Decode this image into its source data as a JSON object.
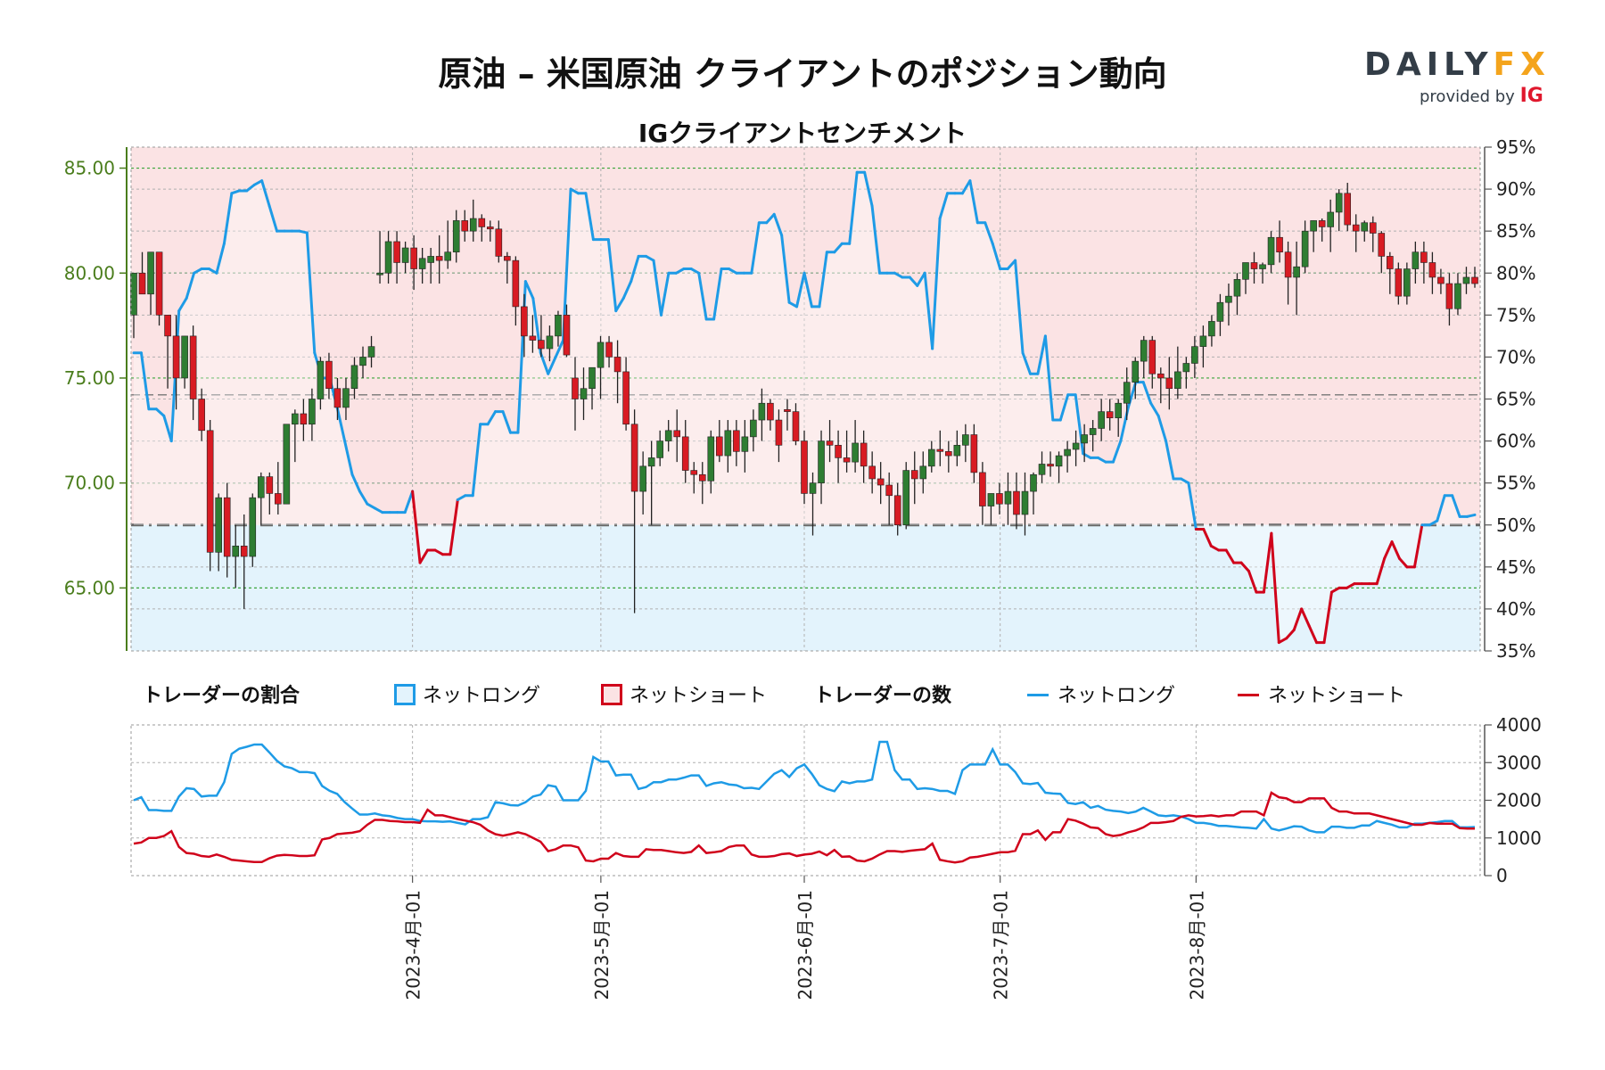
{
  "header": {
    "title": "原油 – 米国原油 クライアントのポジション動向",
    "subtitle": "IGクライアントセンチメント",
    "logo_brand_a": "DAILY",
    "logo_brand_b": "FX",
    "logo_provided": "provided by",
    "logo_ig": "IG"
  },
  "legend": {
    "pct_title": "トレーダーの割合",
    "pct_long": "ネットロング",
    "pct_short": "ネットショート",
    "count_title": "トレーダーの数",
    "count_long": "ネットロング",
    "count_short": "ネットショート"
  },
  "colors": {
    "up": "#2e7d32",
    "down": "#d81b23",
    "long": "#1e9be6",
    "short": "#d0021b",
    "long_fill": "#e3f3fc",
    "short_fill": "#fbe3e4",
    "price_axis": "#4a7d1c"
  },
  "chart_data": {
    "type": "candlestick+line",
    "x_ticks": [
      "2023-4月-01",
      "2023-5月-01",
      "2023-6月-01",
      "2023-7月-01",
      "2023-8月-01"
    ],
    "price_axis": {
      "ticks": [
        "65.00",
        "70.00",
        "75.00",
        "80.00",
        "85.00"
      ],
      "ylim": [
        62.0,
        86.0
      ]
    },
    "sentiment_axis": {
      "ticks": [
        "35%",
        "40%",
        "45%",
        "50%",
        "55%",
        "60%",
        "65%",
        "70%",
        "75%",
        "80%",
        "85%",
        "90%",
        "95%"
      ],
      "ylim": [
        35,
        95
      ]
    },
    "count_axis": {
      "ticks": [
        "0",
        "1000",
        "2000",
        "3000",
        "4000"
      ],
      "ylim": [
        0,
        4000
      ]
    },
    "candles_ohlc": [
      [
        78.0,
        80.0,
        76.9,
        80.0
      ],
      [
        80.0,
        81.0,
        79.0,
        79.0
      ],
      [
        79.0,
        81.0,
        78.0,
        81.0
      ],
      [
        81.0,
        81.0,
        77.5,
        78.0
      ],
      [
        78.0,
        78.0,
        74.5,
        77.0
      ],
      [
        77.0,
        78.0,
        73.5,
        75.0
      ],
      [
        75.0,
        77.0,
        74.5,
        77.0
      ],
      [
        77.0,
        77.5,
        73.0,
        74.0
      ],
      [
        74.0,
        74.5,
        72.0,
        72.5
      ],
      [
        72.5,
        73.0,
        65.8,
        66.7
      ],
      [
        66.7,
        69.5,
        65.8,
        69.3
      ],
      [
        69.3,
        70.0,
        65.5,
        66.5
      ],
      [
        66.5,
        68.0,
        65.0,
        67.0
      ],
      [
        67.0,
        68.5,
        64.0,
        66.5
      ],
      [
        66.5,
        69.5,
        66.0,
        69.3
      ],
      [
        69.3,
        70.5,
        68.0,
        70.3
      ],
      [
        70.3,
        70.5,
        68.5,
        69.5
      ],
      [
        69.5,
        71.0,
        68.5,
        69.0
      ],
      [
        69.0,
        72.0,
        69.0,
        72.8
      ],
      [
        72.8,
        73.5,
        71.0,
        73.3
      ],
      [
        73.3,
        74.0,
        72.0,
        72.8
      ],
      [
        72.8,
        74.5,
        72.0,
        74.0
      ],
      [
        74.0,
        76.0,
        73.5,
        75.8
      ],
      [
        75.8,
        76.2,
        74.0,
        74.5
      ],
      [
        74.5,
        75.0,
        73.0,
        73.6
      ],
      [
        73.6,
        75.0,
        73.0,
        74.5
      ],
      [
        74.5,
        76.0,
        74.0,
        75.6
      ],
      [
        75.6,
        76.5,
        75.0,
        76.0
      ],
      [
        76.0,
        77.0,
        75.5,
        76.5
      ],
      [
        80.0,
        82.0,
        79.5,
        80.0
      ],
      [
        80.0,
        82.0,
        79.5,
        81.5
      ],
      [
        81.5,
        82.0,
        79.5,
        80.5
      ],
      [
        80.5,
        81.5,
        80.0,
        81.2
      ],
      [
        81.2,
        81.8,
        79.2,
        80.2
      ],
      [
        80.2,
        81.2,
        79.5,
        80.7
      ],
      [
        80.5,
        81.2,
        79.5,
        80.8
      ],
      [
        80.8,
        81.8,
        79.5,
        80.6
      ],
      [
        80.6,
        82.5,
        80.2,
        81.0
      ],
      [
        81.0,
        83.0,
        80.5,
        82.5
      ],
      [
        82.5,
        83.0,
        81.5,
        82.0
      ],
      [
        82.0,
        83.5,
        81.5,
        82.6
      ],
      [
        82.6,
        82.8,
        81.5,
        82.2
      ],
      [
        82.2,
        82.5,
        81.5,
        82.1
      ],
      [
        82.1,
        82.5,
        80.5,
        80.8
      ],
      [
        80.8,
        81.0,
        79.5,
        80.6
      ],
      [
        80.6,
        80.8,
        77.5,
        78.4
      ],
      [
        78.4,
        79.0,
        76.0,
        77.0
      ],
      [
        77.0,
        78.0,
        76.2,
        76.8
      ],
      [
        76.8,
        78.0,
        76.0,
        76.4
      ],
      [
        76.4,
        77.5,
        75.8,
        77.0
      ],
      [
        77.0,
        78.2,
        76.5,
        78.0
      ],
      [
        78.0,
        78.5,
        76.0,
        76.1
      ],
      [
        75.0,
        76.0,
        72.5,
        74.0
      ],
      [
        74.0,
        75.5,
        73.0,
        74.5
      ],
      [
        74.5,
        75.5,
        73.5,
        75.5
      ],
      [
        75.5,
        77.0,
        74.0,
        76.7
      ],
      [
        76.7,
        77.0,
        75.5,
        76.0
      ],
      [
        76.0,
        76.8,
        73.8,
        75.3
      ],
      [
        75.3,
        76.0,
        72.5,
        72.8
      ],
      [
        72.8,
        73.5,
        63.8,
        69.6
      ],
      [
        69.6,
        71.5,
        68.5,
        70.8
      ],
      [
        70.8,
        72.0,
        68.0,
        71.2
      ],
      [
        71.2,
        72.5,
        70.8,
        72.0
      ],
      [
        72.0,
        73.0,
        71.5,
        72.5
      ],
      [
        72.5,
        73.5,
        71.0,
        72.2
      ],
      [
        72.2,
        73.0,
        70.0,
        70.6
      ],
      [
        70.6,
        71.0,
        69.5,
        70.4
      ],
      [
        70.4,
        71.0,
        69.0,
        70.1
      ],
      [
        70.1,
        72.5,
        69.5,
        72.2
      ],
      [
        72.2,
        73.0,
        71.0,
        71.3
      ],
      [
        71.3,
        73.0,
        70.5,
        72.5
      ],
      [
        72.5,
        73.0,
        70.8,
        71.5
      ],
      [
        71.5,
        73.0,
        70.5,
        72.2
      ],
      [
        72.2,
        73.5,
        71.5,
        73.0
      ],
      [
        73.0,
        74.5,
        72.0,
        73.8
      ],
      [
        73.8,
        74.0,
        72.5,
        73.0
      ],
      [
        73.0,
        73.5,
        71.0,
        71.8
      ],
      [
        73.5,
        74.0,
        72.5,
        73.4
      ],
      [
        73.4,
        73.8,
        71.8,
        72.0
      ],
      [
        72.0,
        72.5,
        69.0,
        69.5
      ],
      [
        69.5,
        70.5,
        67.5,
        70.0
      ],
      [
        70.0,
        72.5,
        69.0,
        72.0
      ],
      [
        72.0,
        73.0,
        71.0,
        71.8
      ],
      [
        71.8,
        72.5,
        70.0,
        71.2
      ],
      [
        71.2,
        72.5,
        70.5,
        71.0
      ],
      [
        71.0,
        73.0,
        70.5,
        71.9
      ],
      [
        71.9,
        72.5,
        70.0,
        70.8
      ],
      [
        70.8,
        71.5,
        69.5,
        70.2
      ],
      [
        70.2,
        71.0,
        69.0,
        69.9
      ],
      [
        69.9,
        70.5,
        68.0,
        69.4
      ],
      [
        69.4,
        70.0,
        67.5,
        68.0
      ],
      [
        68.0,
        71.0,
        67.8,
        70.6
      ],
      [
        70.6,
        71.5,
        69.0,
        70.2
      ],
      [
        70.2,
        71.5,
        69.5,
        70.8
      ],
      [
        70.8,
        72.0,
        70.5,
        71.6
      ],
      [
        71.6,
        72.5,
        70.8,
        71.5
      ],
      [
        71.5,
        72.0,
        70.5,
        71.3
      ],
      [
        71.3,
        72.5,
        70.8,
        71.8
      ],
      [
        71.8,
        72.8,
        71.0,
        72.3
      ],
      [
        72.3,
        72.8,
        70.0,
        70.5
      ],
      [
        70.5,
        71.0,
        68.0,
        68.9
      ],
      [
        68.9,
        69.5,
        68.0,
        69.5
      ],
      [
        69.5,
        70.0,
        68.5,
        69.0
      ],
      [
        69.0,
        70.5,
        68.0,
        69.6
      ],
      [
        69.6,
        70.5,
        67.8,
        68.5
      ],
      [
        68.5,
        70.5,
        67.5,
        69.6
      ],
      [
        69.6,
        70.5,
        68.5,
        70.4
      ],
      [
        70.4,
        71.5,
        70.0,
        70.9
      ],
      [
        70.9,
        71.5,
        70.3,
        70.8
      ],
      [
        70.8,
        71.5,
        70.0,
        71.3
      ],
      [
        71.3,
        72.0,
        70.5,
        71.6
      ],
      [
        71.6,
        72.5,
        70.8,
        71.9
      ],
      [
        71.9,
        72.8,
        71.0,
        72.3
      ],
      [
        72.3,
        73.0,
        71.5,
        72.6
      ],
      [
        72.6,
        74.0,
        72.0,
        73.4
      ],
      [
        73.4,
        74.0,
        72.5,
        73.1
      ],
      [
        73.1,
        74.0,
        72.2,
        73.8
      ],
      [
        73.8,
        75.5,
        73.0,
        74.8
      ],
      [
        74.8,
        76.0,
        74.0,
        75.8
      ],
      [
        75.8,
        77.0,
        75.0,
        76.8
      ],
      [
        76.8,
        77.0,
        74.5,
        75.2
      ],
      [
        75.2,
        75.5,
        73.8,
        75.0
      ],
      [
        75.0,
        76.0,
        73.5,
        74.5
      ],
      [
        74.5,
        76.5,
        74.0,
        75.3
      ],
      [
        75.3,
        76.0,
        74.5,
        75.7
      ],
      [
        75.7,
        77.0,
        75.0,
        76.5
      ],
      [
        76.5,
        77.5,
        75.5,
        77.0
      ],
      [
        77.0,
        78.0,
        76.5,
        77.7
      ],
      [
        77.7,
        79.0,
        77.0,
        78.6
      ],
      [
        78.6,
        79.5,
        77.5,
        78.9
      ],
      [
        78.9,
        80.0,
        78.0,
        79.7
      ],
      [
        79.7,
        80.5,
        79.0,
        80.5
      ],
      [
        80.5,
        81.0,
        79.5,
        80.2
      ],
      [
        80.2,
        80.5,
        79.5,
        80.4
      ],
      [
        80.4,
        82.0,
        80.0,
        81.7
      ],
      [
        81.7,
        82.5,
        80.5,
        81.0
      ],
      [
        81.0,
        81.5,
        78.5,
        79.8
      ],
      [
        79.8,
        81.5,
        78.0,
        80.3
      ],
      [
        80.3,
        82.5,
        80.0,
        82.0
      ],
      [
        82.0,
        82.5,
        81.0,
        82.5
      ],
      [
        82.5,
        82.6,
        81.5,
        82.2
      ],
      [
        82.2,
        83.5,
        81.0,
        82.9
      ],
      [
        82.9,
        84.0,
        82.0,
        83.8
      ],
      [
        83.8,
        84.3,
        82.0,
        82.3
      ],
      [
        82.3,
        82.8,
        81.0,
        82.0
      ],
      [
        82.0,
        82.5,
        81.5,
        82.4
      ],
      [
        82.4,
        82.7,
        81.0,
        81.9
      ],
      [
        81.9,
        82.0,
        80.0,
        80.8
      ],
      [
        80.8,
        81.0,
        79.0,
        80.2
      ],
      [
        80.2,
        80.5,
        78.5,
        78.9
      ],
      [
        78.9,
        80.5,
        78.5,
        80.2
      ],
      [
        80.2,
        81.5,
        79.5,
        81.0
      ],
      [
        81.0,
        81.5,
        79.5,
        80.5
      ],
      [
        80.5,
        81.0,
        79.0,
        79.8
      ],
      [
        79.8,
        80.2,
        79.0,
        79.5
      ],
      [
        79.5,
        80.0,
        77.5,
        78.3
      ],
      [
        78.3,
        80.0,
        78.0,
        79.5
      ],
      [
        79.5,
        80.3,
        79.0,
        79.8
      ],
      [
        79.8,
        80.3,
        79.3,
        79.5
      ]
    ],
    "sentiment_pct": [
      70.5,
      70.5,
      63.8,
      63.8,
      63.0,
      60.0,
      75.5,
      77.0,
      80.0,
      80.5,
      80.5,
      80.0,
      83.5,
      89.5,
      89.8,
      89.8,
      90.5,
      91.0,
      88.0,
      85.0,
      85.0,
      85.0,
      85.0,
      84.8,
      70.5,
      67.5,
      67.5,
      64.0,
      60.0,
      56.0,
      54.0,
      52.5,
      52.0,
      51.5,
      51.5,
      51.5,
      51.5,
      54.0,
      45.5,
      47.0,
      47.0,
      46.5,
      46.5,
      53.0,
      53.5,
      53.5,
      62.0,
      62.0,
      63.5,
      63.5,
      61.0,
      61.0,
      79.0,
      77.0,
      70.5,
      68.0,
      70.0,
      72.0,
      90.0,
      89.5,
      89.5,
      84.0,
      84.0,
      84.0,
      75.5,
      77.0,
      79.0,
      82.0,
      82.0,
      81.5,
      75.0,
      80.0,
      80.0,
      80.5,
      80.5,
      80.0,
      74.5,
      74.5,
      80.5,
      80.5,
      80.0,
      80.0,
      80.0,
      86.0,
      86.0,
      87.0,
      84.5,
      76.5,
      76.0,
      80.0,
      76.0,
      76.0,
      82.5,
      82.5,
      83.5,
      83.5,
      92.0,
      92.0,
      88.0,
      80.0,
      80.0,
      80.0,
      79.5,
      79.5,
      78.5,
      80.0,
      71.0,
      86.5,
      89.5,
      89.5,
      89.5,
      91.0,
      86.0,
      86.0,
      83.5,
      80.5,
      80.5,
      81.5,
      70.5,
      68.0,
      68.0,
      72.5,
      62.5,
      62.5,
      65.5,
      65.5,
      58.5,
      58.0,
      58.0,
      57.5,
      57.5,
      60.0,
      64.0,
      67.0,
      67.0,
      64.5,
      63.0,
      60.0,
      55.5,
      55.5,
      55.0,
      49.5,
      49.5,
      47.5,
      47.0,
      47.0,
      45.5,
      45.5,
      44.5,
      42.0,
      42.0,
      49.0,
      36.0,
      36.5,
      37.5,
      40.0,
      38.0,
      36.0,
      36.0,
      42.0,
      42.5,
      42.5,
      43.0,
      43.0,
      43.0,
      43.0,
      46.0,
      48.0,
      46.0,
      45.0,
      45.0,
      50.0,
      50.0,
      50.5,
      53.5,
      53.5,
      51.0,
      51.0,
      51.2
    ],
    "count_long": [
      2000,
      2080,
      1740,
      1740,
      1720,
      1720,
      2100,
      2320,
      2300,
      2100,
      2120,
      2120,
      2480,
      3230,
      3370,
      3420,
      3480,
      3480,
      3270,
      3050,
      2900,
      2850,
      2750,
      2750,
      2720,
      2380,
      2250,
      2170,
      1950,
      1780,
      1620,
      1620,
      1650,
      1600,
      1580,
      1530,
      1500,
      1500,
      1450,
      1440,
      1440,
      1430,
      1440,
      1400,
      1360,
      1500,
      1500,
      1550,
      1950,
      1920,
      1870,
      1860,
      1950,
      2100,
      2150,
      2400,
      2360,
      2000,
      2000,
      2000,
      2250,
      3150,
      3030,
      3030,
      2660,
      2680,
      2680,
      2300,
      2350,
      2480,
      2480,
      2550,
      2550,
      2600,
      2660,
      2660,
      2380,
      2450,
      2480,
      2420,
      2400,
      2320,
      2330,
      2300,
      2500,
      2700,
      2800,
      2620,
      2850,
      2950,
      2700,
      2400,
      2300,
      2240,
      2500,
      2450,
      2500,
      2500,
      2550,
      3550,
      3550,
      2800,
      2550,
      2550,
      2300,
      2320,
      2300,
      2250,
      2250,
      2170,
      2800,
      2950,
      2950,
      2950,
      3350,
      2950,
      2950,
      2750,
      2450,
      2430,
      2460,
      2200,
      2180,
      2170,
      1930,
      1900,
      1950,
      1800,
      1850,
      1750,
      1720,
      1700,
      1660,
      1700,
      1800,
      1700,
      1600,
      1580,
      1600,
      1570,
      1500,
      1400,
      1400,
      1370,
      1320,
      1320,
      1300,
      1280,
      1270,
      1250,
      1500,
      1250,
      1200,
      1250,
      1310,
      1300,
      1200,
      1150,
      1150,
      1300,
      1300,
      1270,
      1270,
      1330,
      1330,
      1450,
      1400,
      1350,
      1280,
      1280,
      1380,
      1380,
      1400,
      1420,
      1450,
      1450,
      1280,
      1280,
      1290
    ],
    "count_short": [
      850,
      880,
      1000,
      1000,
      1050,
      1180,
      760,
      600,
      580,
      520,
      500,
      560,
      500,
      420,
      400,
      380,
      360,
      360,
      460,
      530,
      550,
      540,
      520,
      520,
      540,
      960,
      1000,
      1100,
      1120,
      1140,
      1180,
      1350,
      1480,
      1480,
      1450,
      1440,
      1420,
      1420,
      1400,
      1750,
      1600,
      1600,
      1550,
      1500,
      1460,
      1420,
      1350,
      1200,
      1100,
      1060,
      1100,
      1150,
      1100,
      1000,
      900,
      650,
      700,
      800,
      800,
      750,
      400,
      380,
      450,
      450,
      600,
      520,
      500,
      500,
      700,
      680,
      680,
      650,
      620,
      600,
      630,
      800,
      600,
      620,
      650,
      760,
      800,
      800,
      560,
      500,
      500,
      520,
      570,
      590,
      520,
      560,
      580,
      640,
      540,
      680,
      500,
      510,
      400,
      380,
      450,
      560,
      650,
      650,
      630,
      660,
      680,
      700,
      850,
      420,
      380,
      350,
      380,
      480,
      500,
      540,
      580,
      620,
      620,
      660,
      1100,
      1100,
      1200,
      950,
      1150,
      1150,
      1500,
      1460,
      1380,
      1280,
      1260,
      1100,
      1050,
      1080,
      1150,
      1200,
      1280,
      1400,
      1400,
      1420,
      1450,
      1560,
      1600,
      1570,
      1580,
      1600,
      1570,
      1600,
      1600,
      1700,
      1700,
      1700,
      1600,
      2200,
      2080,
      2050,
      1950,
      1950,
      2050,
      2050,
      2050,
      1800,
      1700,
      1700,
      1650,
      1650,
      1650,
      1600,
      1550,
      1500,
      1450,
      1400,
      1350,
      1350,
      1400,
      1380,
      1380,
      1380,
      1260,
      1250,
      1250
    ]
  }
}
